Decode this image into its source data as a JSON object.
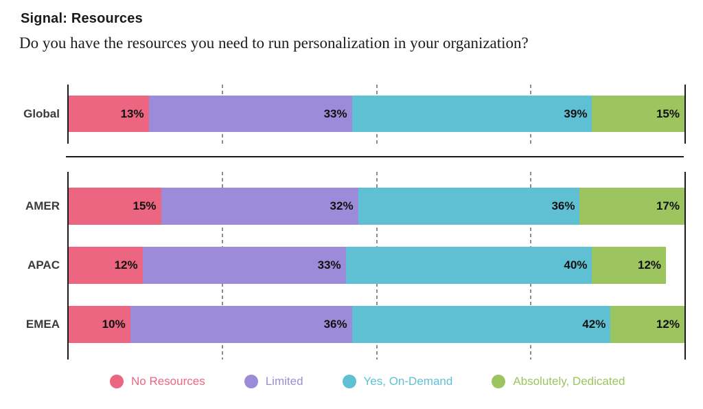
{
  "header": {
    "title": "Signal: Resources",
    "subtitle": "Do you have the resources you need to run personalization in your organization?"
  },
  "chart_data": {
    "type": "bar",
    "stacked": true,
    "orientation": "horizontal",
    "title": "Signal: Resources",
    "subtitle": "Do you have the resources you need to run personalization in your organization?",
    "unit": "%",
    "value_label_format": "{v}%",
    "xlim": [
      0,
      100
    ],
    "gridlines_pct": [
      25,
      50,
      75
    ],
    "grid_style": "dashed",
    "legend_position": "bottom",
    "group_sections": [
      [
        "Global"
      ],
      [
        "AMER",
        "APAC",
        "EMEA"
      ]
    ],
    "categories": [
      "Global",
      "AMER",
      "APAC",
      "EMEA"
    ],
    "series": [
      {
        "name": "No Resources",
        "color": "#EC6581",
        "values": [
          13,
          15,
          12,
          10
        ]
      },
      {
        "name": "Limited",
        "color": "#9C8BD8",
        "values": [
          33,
          32,
          33,
          36
        ]
      },
      {
        "name": "Yes, On-Demand",
        "color": "#5FC0D4",
        "values": [
          39,
          36,
          40,
          42
        ]
      },
      {
        "name": "Absolutely, Dedicated",
        "color": "#9CC45F",
        "values": [
          15,
          17,
          12,
          12
        ]
      }
    ]
  },
  "colors": {
    "axis": "#1a1a1a",
    "gridline": "#8c8c8c",
    "value_label": "#111111",
    "row_label": "#3a3a3a"
  }
}
